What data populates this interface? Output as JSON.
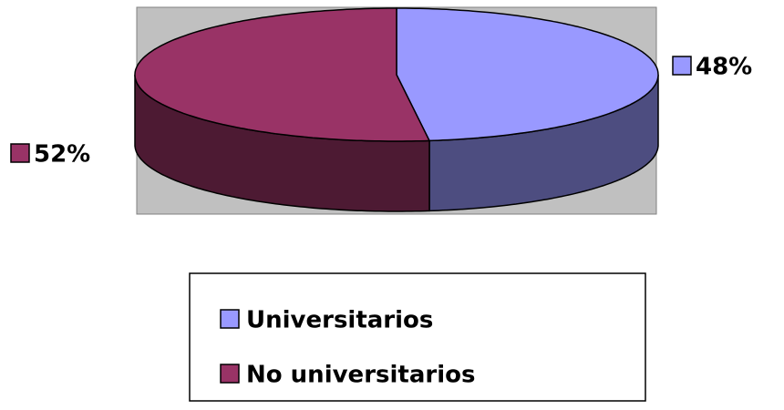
{
  "chart_data": {
    "type": "pie3d",
    "categories": [
      "Universitarios",
      "No universitarios"
    ],
    "values": [
      48,
      52
    ],
    "value_labels": [
      "48%",
      "52%"
    ],
    "colors": [
      "#9999ff",
      "#993366"
    ],
    "legend": "bottom"
  }
}
